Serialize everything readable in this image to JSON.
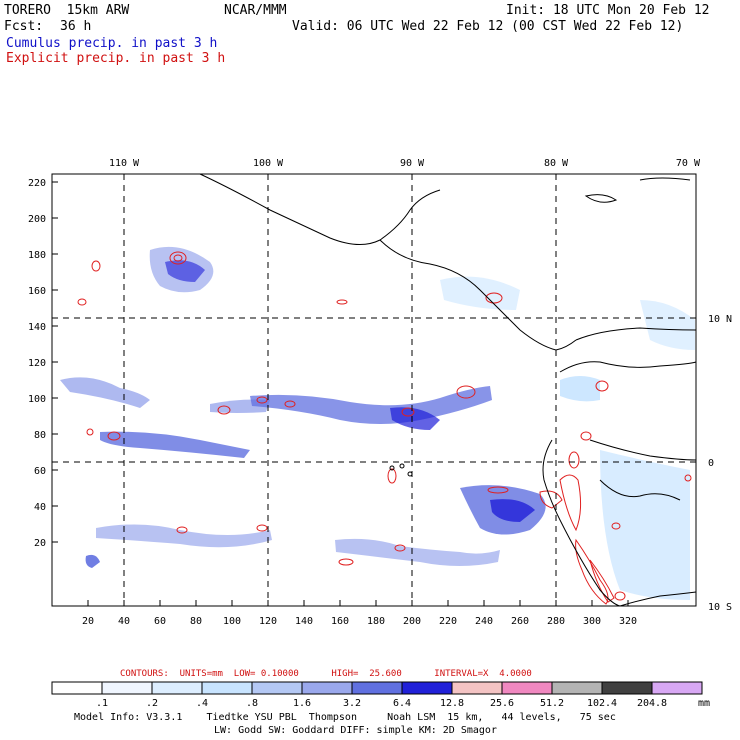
{
  "header": {
    "model": "TORERO  15km ARW",
    "center": "NCAR/MMM",
    "init": "Init: 18 UTC Mon 20 Feb 12",
    "fcst_label": "Fcst:",
    "fcst_value": "36 h",
    "valid": "Valid: 06 UTC Wed 22 Feb 12 (00 CST Wed 22 Feb 12)",
    "legend_cumulus": "Cumulus precip. in past 3 h",
    "legend_explicit": "Explicit precip. in past 3 h"
  },
  "map": {
    "top_lon_labels": [
      "110 W",
      "100 W",
      "90 W",
      "80 W",
      "70 W"
    ],
    "right_lat_labels": [
      "10 N",
      "0",
      "10 S"
    ],
    "left_y_ticks": [
      "220",
      "200",
      "180",
      "160",
      "140",
      "120",
      "100",
      "80",
      "60",
      "40",
      "20"
    ],
    "bottom_x_ticks": [
      "20",
      "40",
      "60",
      "80",
      "100",
      "120",
      "140",
      "160",
      "180",
      "200",
      "220",
      "240",
      "260",
      "280",
      "300",
      "320"
    ]
  },
  "colorbar": {
    "contours_line": "CONTOURS:  UNITS=mm  LOW= 0.10000      HIGH=  25.600      INTERVAL=X  4.0000",
    "labels": [
      ".1",
      ".2",
      ".4",
      ".8",
      "1.6",
      "3.2",
      "6.4",
      "12.8",
      "25.6",
      "51.2",
      "102.4",
      "204.8"
    ],
    "units": "mm",
    "colors": [
      "#ffffff",
      "#f0f6ff",
      "#ddeeff",
      "#c8e4ff",
      "#b4c8f4",
      "#9aa8ec",
      "#6070e0",
      "#2020d8",
      "#f4c4c4",
      "#f088c0",
      "#b4b4b4",
      "#404040",
      "#d8a8f4"
    ]
  },
  "footer": {
    "line1": "Model Info: V3.3.1    Tiedtke YSU PBL  Thompson     Noah LSM  15 km,   44 levels,   75 sec",
    "line2": "LW: Godd SW: Goddard DIFF: simple KM: 2D Smagor"
  }
}
